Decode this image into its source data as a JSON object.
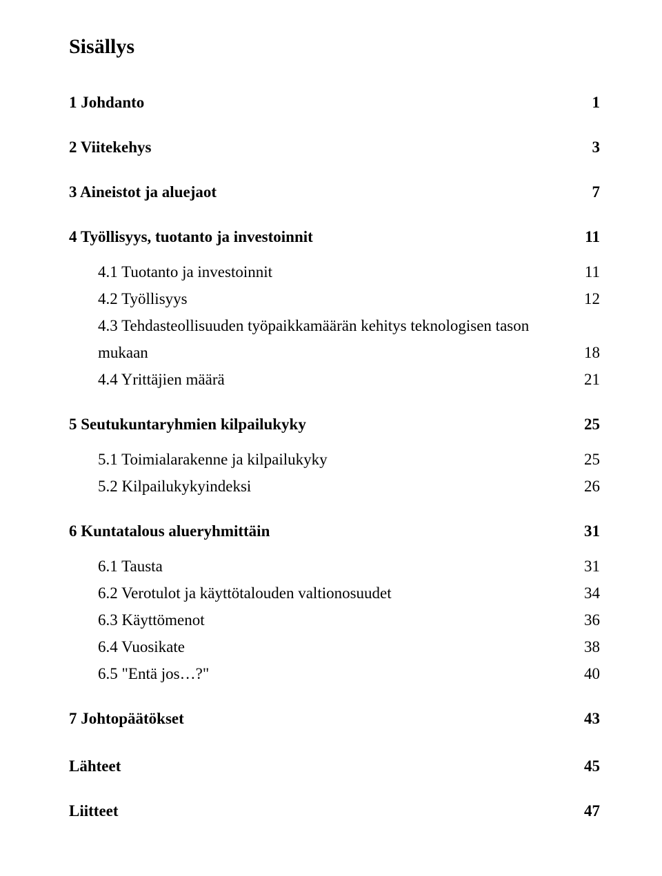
{
  "title": "Sisällys",
  "s1": {
    "label": "1 Johdanto",
    "page": "1"
  },
  "s2": {
    "label": "2 Viitekehys",
    "page": "3"
  },
  "s3": {
    "label": "3 Aineistot ja aluejaot",
    "page": "7"
  },
  "s4": {
    "label": "4 Työllisyys, tuotanto ja investoinnit",
    "page": "11",
    "i1": {
      "label": "4.1 Tuotanto ja investoinnit",
      "page": "11"
    },
    "i2": {
      "label": "4.2 Työllisyys",
      "page": "12"
    },
    "i3": {
      "line1": "4.3 Tehdasteollisuuden työpaikkamäärän kehitys teknologisen tason",
      "line2": "mukaan",
      "page": "18"
    },
    "i4": {
      "label": "4.4 Yrittäjien määrä",
      "page": "21"
    }
  },
  "s5": {
    "label": "5 Seutukuntaryhmien kilpailukyky",
    "page": "25",
    "i1": {
      "label": "5.1 Toimialarakenne ja kilpailukyky",
      "page": "25"
    },
    "i2": {
      "label": "5.2 Kilpailukykyindeksi",
      "page": "26"
    }
  },
  "s6": {
    "label": "6 Kuntatalous alueryhmittäin",
    "page": "31",
    "i1": {
      "label": "6.1 Tausta",
      "page": "31"
    },
    "i2": {
      "label": "6.2 Verotulot ja käyttötalouden valtionosuudet",
      "page": "34"
    },
    "i3": {
      "label": "6.3 Käyttömenot",
      "page": "36"
    },
    "i4": {
      "label": "6.4 Vuosikate",
      "page": "38"
    },
    "i5": {
      "label": "6.5 \"Entä jos…?\"",
      "page": "40"
    }
  },
  "s7": {
    "label": "7 Johtopäätökset",
    "page": "43"
  },
  "refs": {
    "label": "Lähteet",
    "page": "45"
  },
  "appx": {
    "label": "Liitteet",
    "page": "47"
  }
}
